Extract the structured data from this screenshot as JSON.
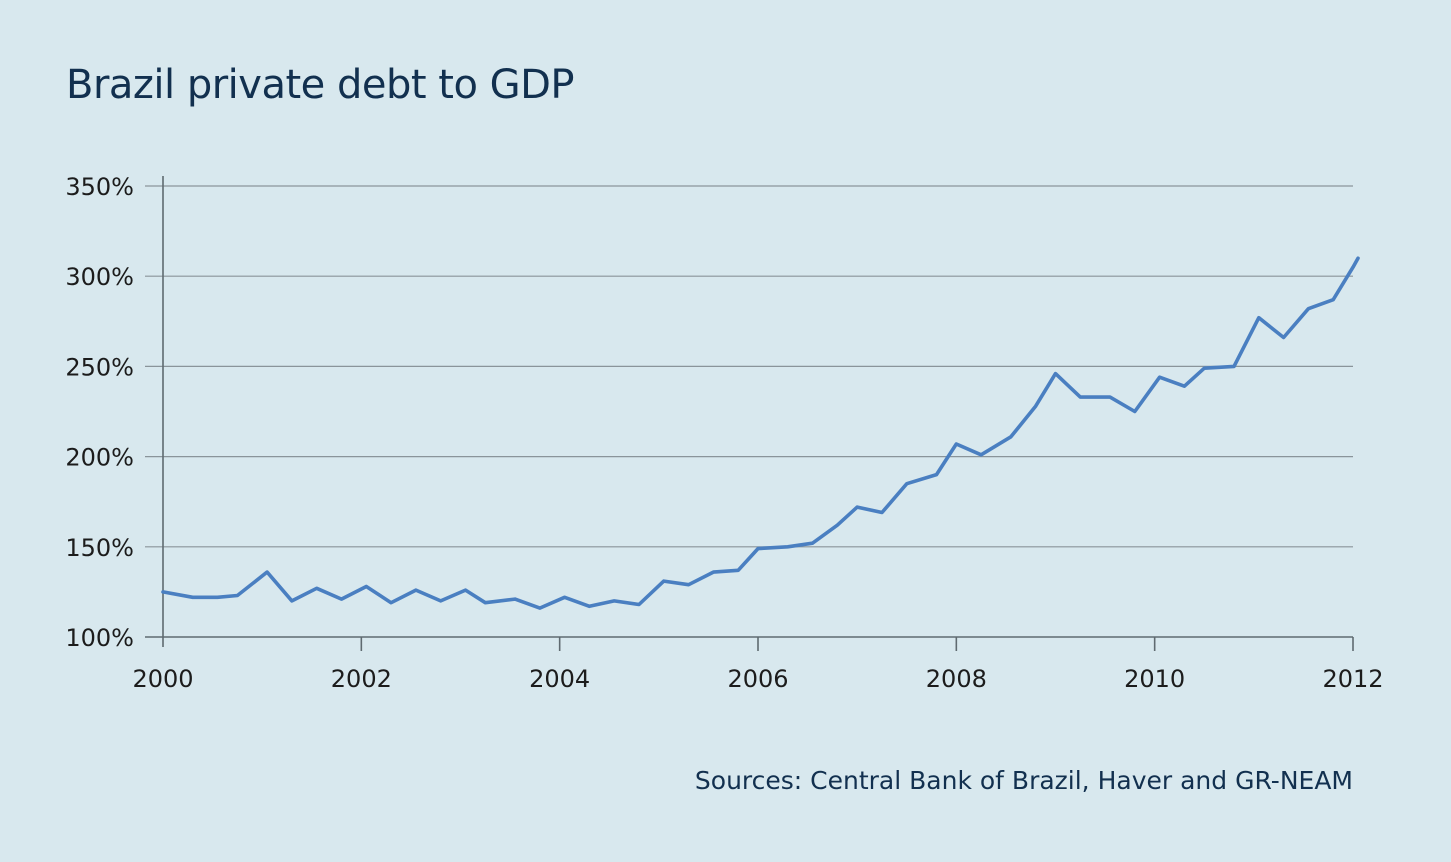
{
  "chart_data": {
    "type": "line",
    "title": "Brazil private debt to GDP",
    "xlabel": "",
    "ylabel": "",
    "x_ticks": [
      "2000",
      "2002",
      "2004",
      "2006",
      "2008",
      "2010",
      "2012"
    ],
    "y_ticks": [
      "100%",
      "150%",
      "200%",
      "250%",
      "300%",
      "350%"
    ],
    "xlim": [
      2000,
      2012
    ],
    "ylim": [
      100,
      350
    ],
    "grid": true,
    "series": [
      {
        "color": "#4a7fc1",
        "x": [
          2000.0,
          2000.3,
          2000.55,
          2000.75,
          2001.05,
          2001.3,
          2001.55,
          2001.8,
          2002.05,
          2002.3,
          2002.55,
          2002.8,
          2003.05,
          2003.25,
          2003.55,
          2003.8,
          2004.05,
          2004.3,
          2004.55,
          2004.8,
          2005.05,
          2005.3,
          2005.55,
          2005.8,
          2006.0,
          2006.3,
          2006.55,
          2006.8,
          2007.0,
          2007.25,
          2007.5,
          2007.8,
          2008.0,
          2008.25,
          2008.55,
          2008.8,
          2009.0,
          2009.25,
          2009.55,
          2009.8,
          2010.05,
          2010.3,
          2010.5,
          2010.8,
          2011.05,
          2011.3,
          2011.55,
          2011.8,
          2012.0,
          2012.05
        ],
        "values": [
          125,
          122,
          122,
          123,
          136,
          120,
          127,
          121,
          128,
          119,
          126,
          120,
          126,
          119,
          121,
          116,
          122,
          117,
          120,
          118,
          131,
          129,
          136,
          137,
          149,
          150,
          152,
          162,
          172,
          169,
          185,
          190,
          207,
          201,
          211,
          228,
          246,
          233,
          233,
          225,
          244,
          239,
          249,
          250,
          277,
          266,
          282,
          287,
          305,
          310
        ]
      }
    ]
  },
  "footer": {
    "source": "Sources: Central Bank of Brazil, Haver and GR-NEAM"
  }
}
